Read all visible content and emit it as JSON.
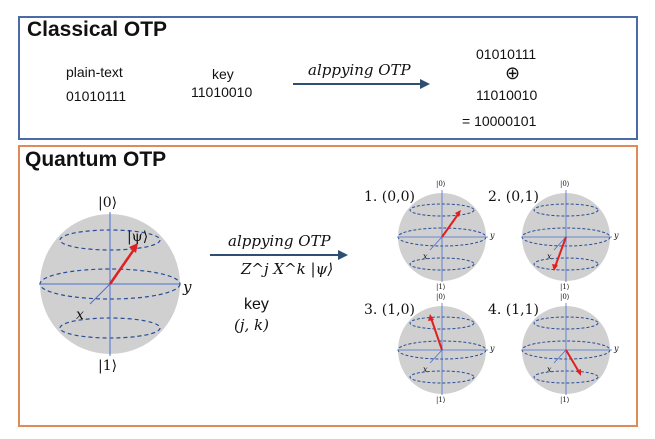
{
  "classical": {
    "title": "Classical OTP",
    "plaintext_label": "plain-text",
    "plaintext_value": "01010111",
    "key_label": "key",
    "key_value": "11010010",
    "arrow_label": "alppying OTP",
    "operand_a": "01010111",
    "xor_symbol": "⊕",
    "operand_b": "11010010",
    "result": "= 10000101"
  },
  "quantum": {
    "title": "Quantum OTP",
    "sphere_labels": {
      "zero": "|0⟩",
      "one": "|1⟩",
      "psi": "|ψ⟩",
      "x": "x",
      "y": "y"
    },
    "arrow_label": "alppying OTP",
    "operation": "Z^j X^k |ψ⟩",
    "key_label": "key",
    "key_value": "(j, k)",
    "cases": [
      {
        "label": "1. (0,0)"
      },
      {
        "label": "2. (0,1)"
      },
      {
        "label": "3. (1,0)"
      },
      {
        "label": "4. (1,1)"
      }
    ],
    "small_sphere_labels": {
      "zero": "|0⟩",
      "one": "|1⟩",
      "x": "x",
      "y": "y"
    }
  },
  "colors": {
    "classical_border": "#4a6aa8",
    "quantum_border": "#e08a55",
    "sphere_fill": "#d0d0d0",
    "state_vector": "#e02020",
    "arrow": "#2e4e72"
  }
}
